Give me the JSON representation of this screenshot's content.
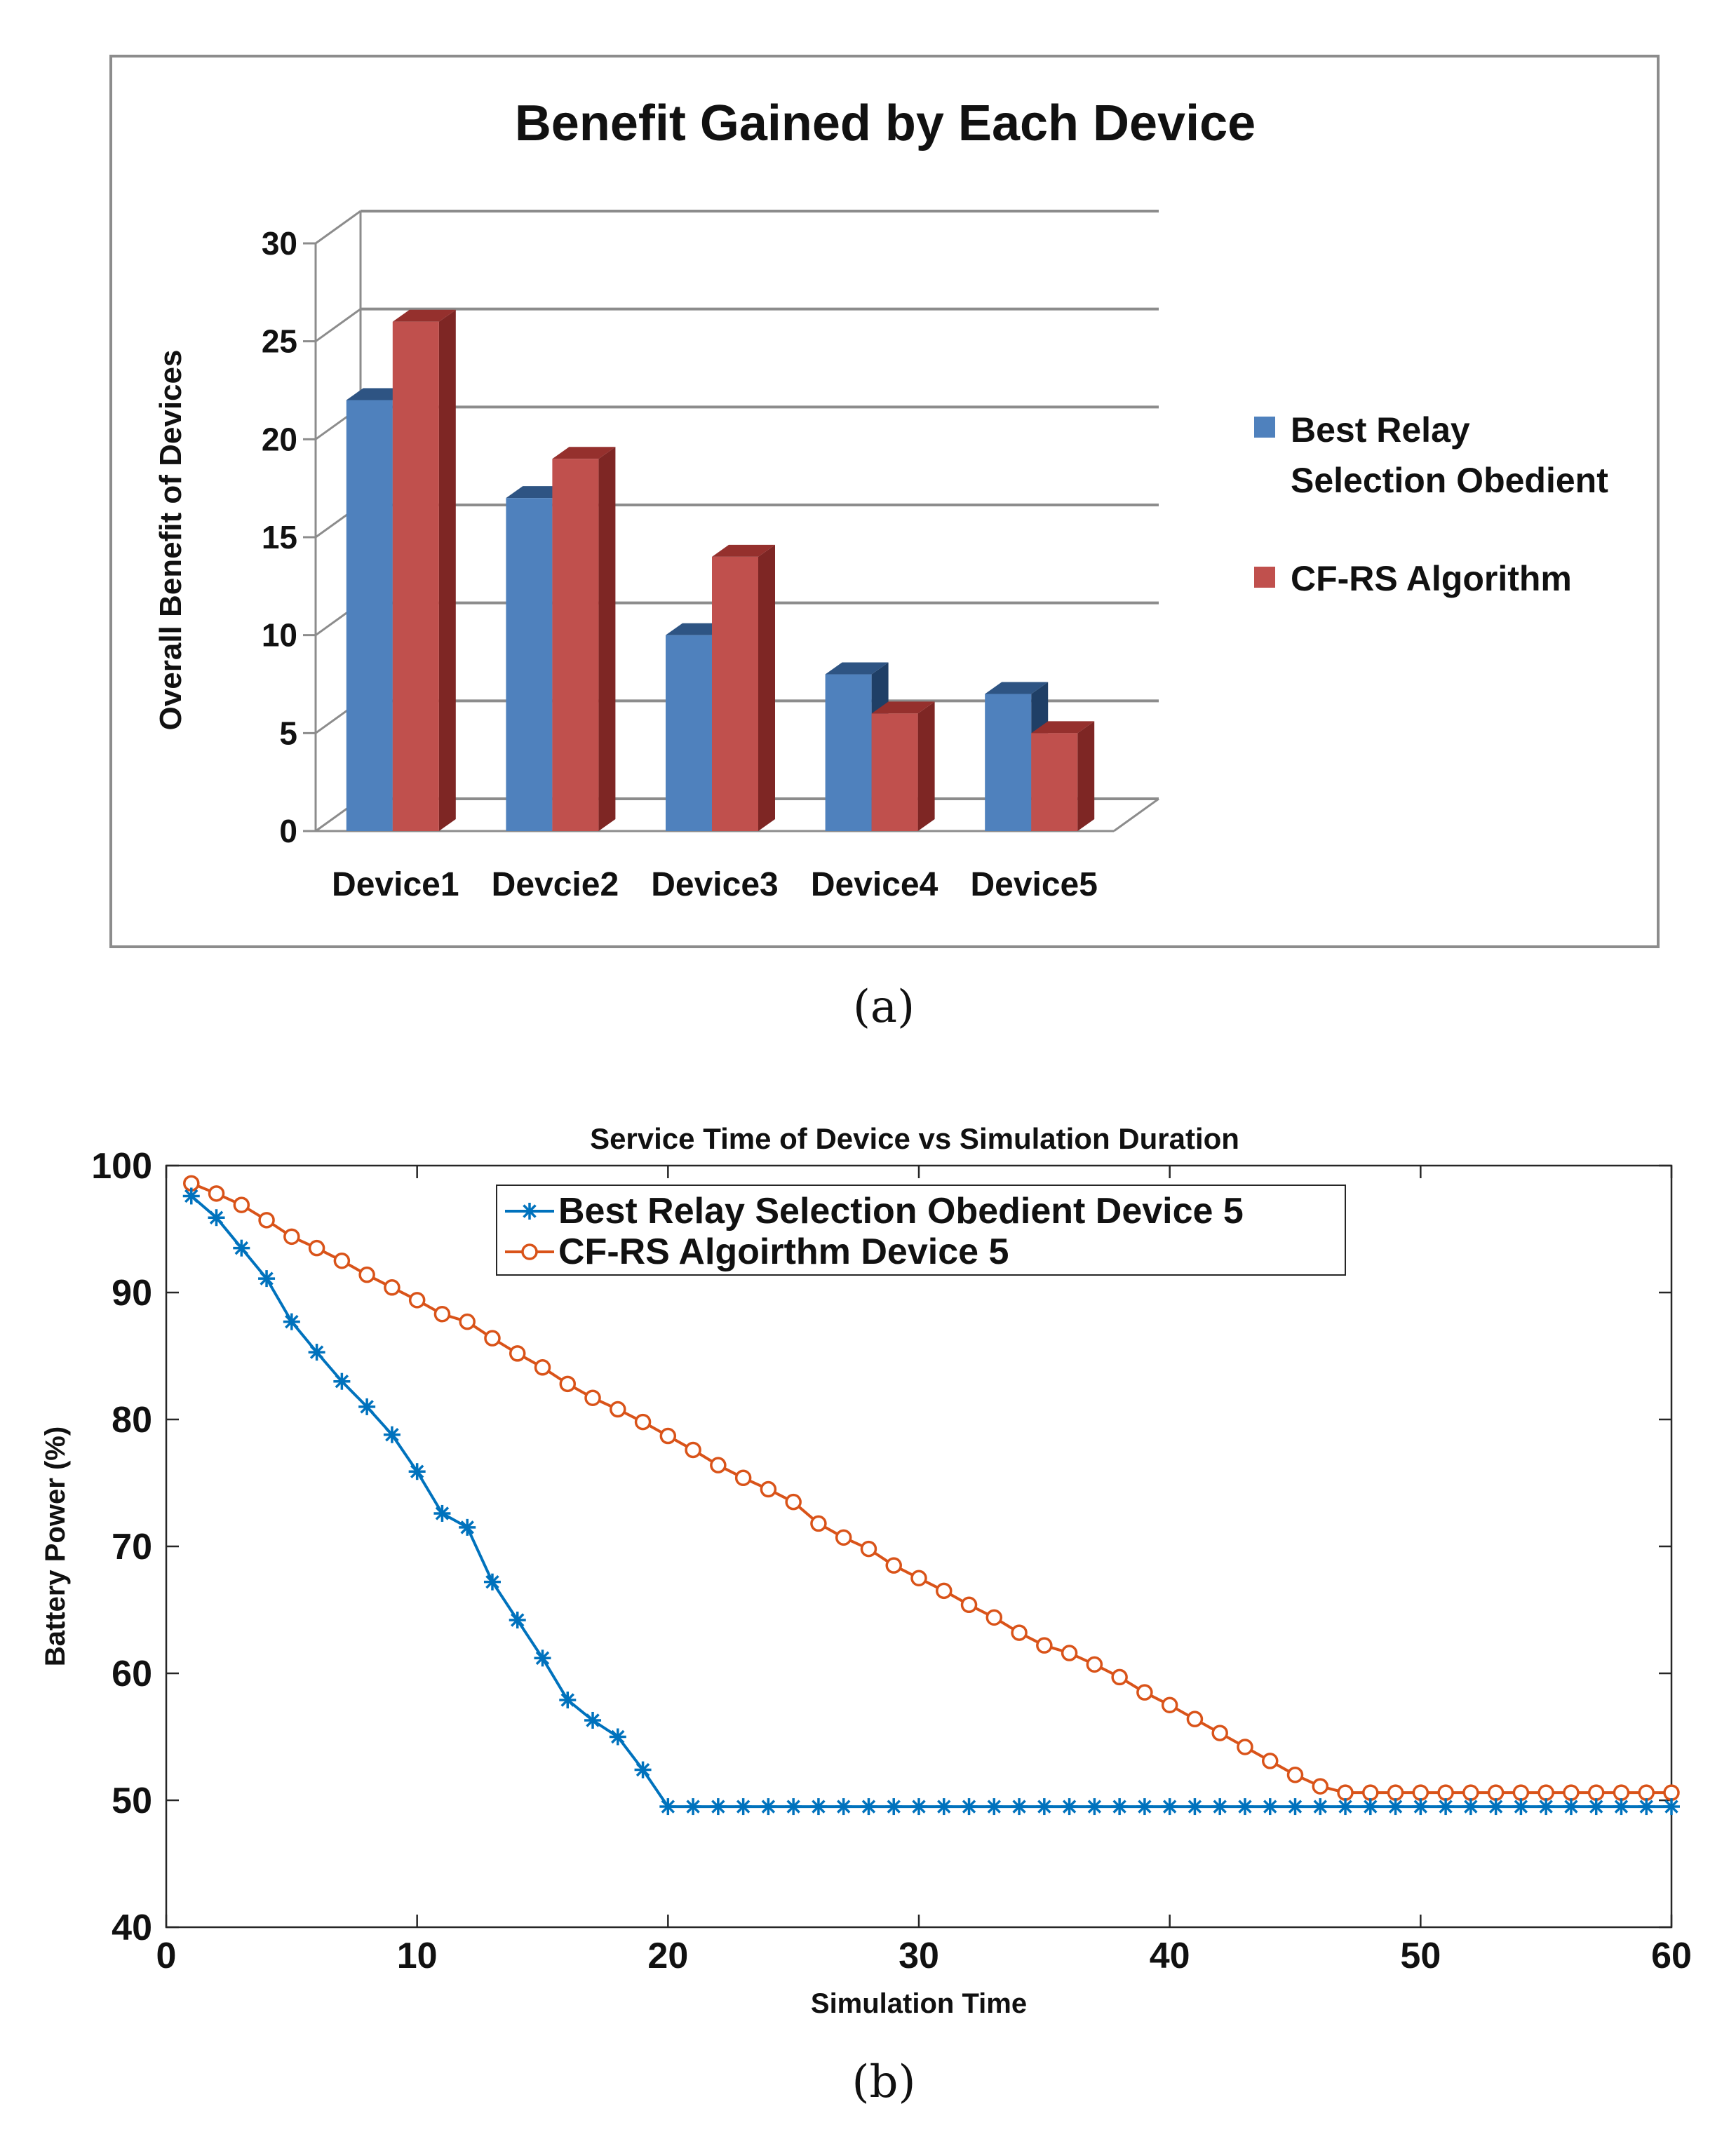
{
  "colors": {
    "a_series1": "#4F81BD",
    "a_series1_side": "#1F3F66",
    "a_series1_top": "#2E5483",
    "a_series2": "#C0504D",
    "a_series2_side": "#7E2624",
    "a_series2_top": "#95302D",
    "b_series1": "#0072BD",
    "b_series2": "#D95319",
    "frame": "#8C8C8C"
  },
  "captions": {
    "a": "(a)",
    "b": "(b)"
  },
  "chart_data": [
    {
      "type": "bar",
      "style": "3d-clustered",
      "title": "Benefit Gained by Each Device",
      "xlabel": "",
      "ylabel": "Overall Benefit of Devices",
      "categories": [
        "Device1",
        "Devcie2",
        "Device3",
        "Device4",
        "Device5"
      ],
      "series": [
        {
          "name": "Best Relay Selection Obedient",
          "legend_lines": [
            "Best Relay",
            "Selection Obedient"
          ],
          "values": [
            22,
            17,
            10,
            8,
            7
          ]
        },
        {
          "name": "CF-RS Algorithm",
          "legend_lines": [
            "CF-RS Algorithm"
          ],
          "values": [
            26,
            19,
            14,
            6,
            5
          ]
        }
      ],
      "ylim": [
        0,
        30
      ],
      "yticks": [
        0,
        5,
        10,
        15,
        20,
        25,
        30
      ],
      "grid": true,
      "legend_position": "right"
    },
    {
      "type": "line",
      "title": "Service Time of Device vs Simulation Duration",
      "xlabel": "Simulation Time",
      "ylabel": "Battery Power (%)",
      "xlim": [
        0,
        60
      ],
      "ylim": [
        40,
        100
      ],
      "xticks": [
        0,
        10,
        20,
        30,
        40,
        50,
        60
      ],
      "yticks": [
        40,
        50,
        60,
        70,
        80,
        90,
        100
      ],
      "legend_position": "top-center",
      "x": [
        1,
        2,
        3,
        4,
        5,
        6,
        7,
        8,
        9,
        10,
        11,
        12,
        13,
        14,
        15,
        16,
        17,
        18,
        19,
        20,
        21,
        22,
        23,
        24,
        25,
        26,
        27,
        28,
        29,
        30,
        31,
        32,
        33,
        34,
        35,
        36,
        37,
        38,
        39,
        40,
        41,
        42,
        43,
        44,
        45,
        46,
        47,
        48,
        49,
        50,
        51,
        52,
        53,
        54,
        55,
        56,
        57,
        58,
        59,
        60
      ],
      "series": [
        {
          "name": "Best Relay Selection Obedient Device 5",
          "marker": "asterisk",
          "values": [
            97.6,
            95.9,
            93.5,
            91.1,
            87.7,
            85.3,
            83.0,
            81.0,
            78.8,
            75.9,
            72.6,
            71.5,
            67.2,
            64.2,
            61.2,
            57.9,
            56.3,
            55.0,
            52.4,
            49.5,
            49.5,
            49.5,
            49.5,
            49.5,
            49.5,
            49.5,
            49.5,
            49.5,
            49.5,
            49.5,
            49.5,
            49.5,
            49.5,
            49.5,
            49.5,
            49.5,
            49.5,
            49.5,
            49.5,
            49.5,
            49.5,
            49.5,
            49.5,
            49.5,
            49.5,
            49.5,
            49.5,
            49.5,
            49.5,
            49.5,
            49.5,
            49.5,
            49.5,
            49.5,
            49.5,
            49.5,
            49.5,
            49.5,
            49.5,
            49.5
          ]
        },
        {
          "name": "CF-RS Algoirthm Device 5",
          "marker": "circle",
          "values": [
            98.6,
            97.8,
            96.9,
            95.7,
            94.4,
            93.5,
            92.5,
            91.4,
            90.4,
            89.4,
            88.3,
            87.7,
            86.4,
            85.2,
            84.1,
            82.8,
            81.7,
            80.8,
            79.8,
            78.7,
            77.6,
            76.4,
            75.4,
            74.5,
            73.5,
            71.8,
            70.7,
            69.8,
            68.5,
            67.5,
            66.5,
            65.4,
            64.4,
            63.2,
            62.2,
            61.6,
            60.7,
            59.7,
            58.5,
            57.5,
            56.4,
            55.3,
            54.2,
            53.1,
            52.0,
            51.1,
            50.6,
            50.6,
            50.6,
            50.6,
            50.6,
            50.6,
            50.6,
            50.6,
            50.6,
            50.6,
            50.6,
            50.6,
            50.6,
            50.6
          ]
        }
      ]
    }
  ]
}
